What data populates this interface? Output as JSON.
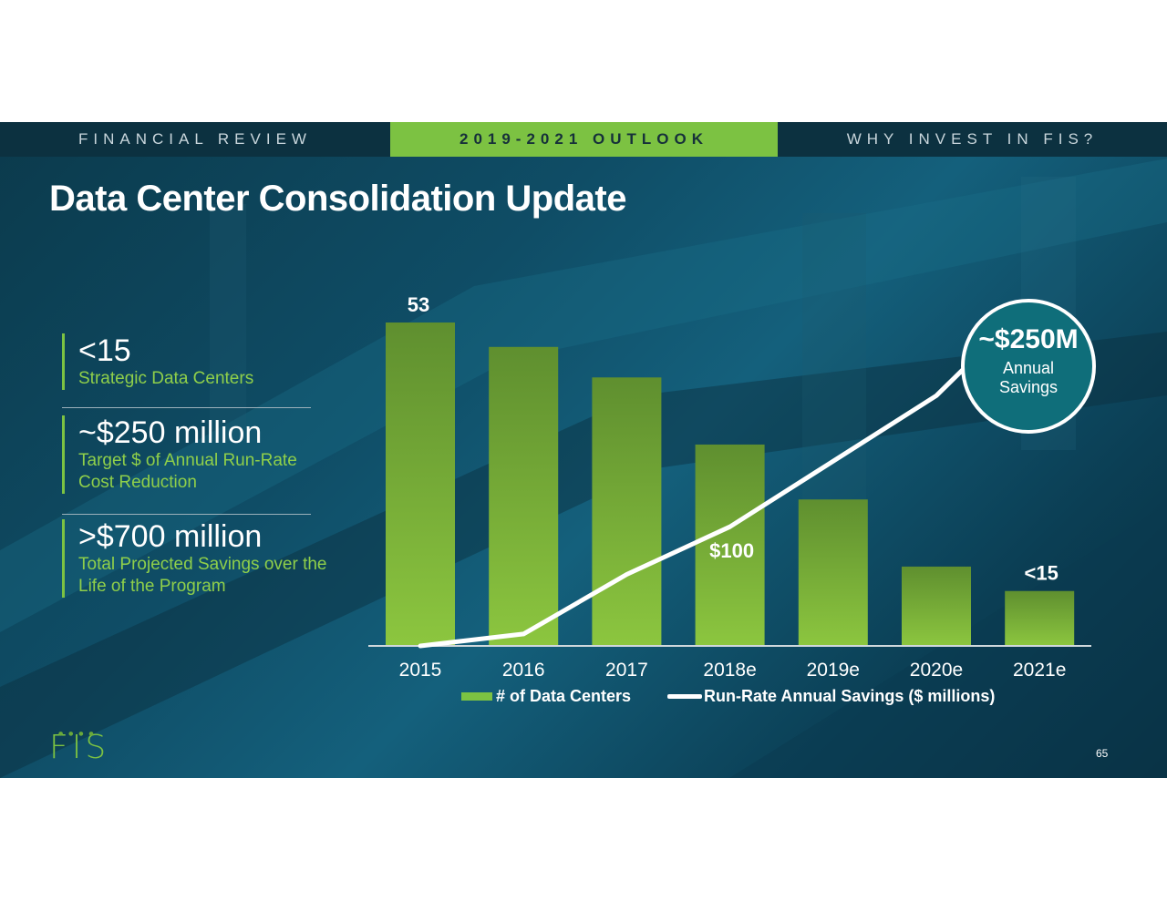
{
  "nav": {
    "tabs": [
      {
        "label": "FINANCIAL REVIEW",
        "active": false
      },
      {
        "label": "2019-2021 OUTLOOK",
        "active": true
      },
      {
        "label": "WHY INVEST IN FIS?",
        "active": false
      }
    ]
  },
  "title": "Data Center Consolidation Update",
  "stats": [
    {
      "value": "<15",
      "label": "Strategic Data Centers"
    },
    {
      "value": "~$250 million",
      "label": "Target $ of Annual Run-Rate Cost Reduction"
    },
    {
      "value": ">$700 million",
      "label": "Total Projected Savings over the Life of the Program"
    }
  ],
  "callout": {
    "value": "~$250M",
    "label_line1": "Annual",
    "label_line2": "Savings"
  },
  "legend": {
    "bars": "# of Data Centers",
    "line": "Run-Rate Annual Savings ($ millions)"
  },
  "logo": "FIS",
  "page_number": "65",
  "colors": {
    "accent": "#7cc242",
    "bar_top": "#5f8f2f",
    "bar_bottom": "#8cc63f",
    "line": "#ffffff",
    "background": "#0f4d66"
  },
  "chart_data": {
    "type": "bar",
    "categories": [
      "2015",
      "2016",
      "2017",
      "2018e",
      "2019e",
      "2020e",
      "2021e"
    ],
    "series": [
      {
        "name": "# of Data Centers",
        "type": "bar",
        "values": [
          53,
          49,
          44,
          33,
          24,
          13,
          9
        ]
      },
      {
        "name": "Run-Rate Annual Savings ($ millions)",
        "type": "line",
        "values": [
          0,
          10,
          60,
          100,
          155,
          210,
          250
        ]
      }
    ],
    "data_labels": [
      {
        "series": 0,
        "index": 0,
        "text": "53"
      },
      {
        "series": 0,
        "index": 6,
        "text": "<15"
      },
      {
        "series": 1,
        "index": 3,
        "text": "$100"
      }
    ],
    "ylim_bars": [
      0,
      53
    ],
    "ylim_line": [
      0,
      250
    ],
    "grid": false,
    "legend_position": "bottom"
  }
}
